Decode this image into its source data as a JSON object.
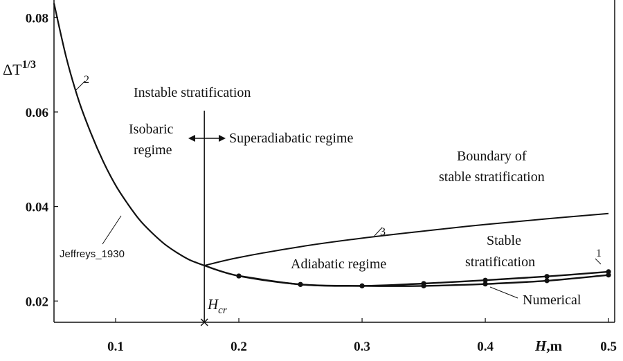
{
  "chart_data": {
    "type": "line",
    "ylabel": "ΔT^1/3",
    "ylabel_base": "ΔT",
    "ylabel_sup": "1/3",
    "xlabel": "H, m",
    "xlabel_italic": "H",
    "xlabel_unit": ",m",
    "xlim": [
      0.05,
      0.505
    ],
    "ylim": [
      0.0155,
      0.0837
    ],
    "x_ticks": [
      0.1,
      0.2,
      0.3,
      0.4,
      0.5
    ],
    "x_tick_labels": [
      "0.1",
      "0.2",
      "0.3",
      "0.4",
      "0.5"
    ],
    "y_ticks": [
      0.02,
      0.04,
      0.06,
      0.08
    ],
    "y_tick_labels": [
      "0.02",
      "0.04",
      "0.06",
      "0.08"
    ],
    "grid": false,
    "series": [
      {
        "label": "2",
        "x": [
          0.05,
          0.06,
          0.07,
          0.08,
          0.09,
          0.1,
          0.11,
          0.12,
          0.13,
          0.14,
          0.15,
          0.16,
          0.172
        ],
        "y": [
          0.083,
          0.0715,
          0.0625,
          0.0555,
          0.0495,
          0.0445,
          0.0405,
          0.037,
          0.0343,
          0.032,
          0.0302,
          0.0287,
          0.0275
        ]
      },
      {
        "label": "3",
        "x": [
          0.172,
          0.2,
          0.25,
          0.3,
          0.35,
          0.4,
          0.45,
          0.5
        ],
        "y": [
          0.0275,
          0.0292,
          0.0315,
          0.0333,
          0.0348,
          0.0362,
          0.0374,
          0.0385
        ]
      },
      {
        "label": "1",
        "x": [
          0.172,
          0.2,
          0.25,
          0.3,
          0.35,
          0.4,
          0.45,
          0.5
        ],
        "y": [
          0.0275,
          0.0253,
          0.0235,
          0.0232,
          0.0237,
          0.0244,
          0.0252,
          0.0262
        ]
      },
      {
        "name": "Numerical",
        "x": [
          0.2,
          0.25,
          0.3,
          0.35,
          0.4,
          0.45,
          0.5
        ],
        "y": [
          0.0253,
          0.0235,
          0.0232,
          0.0232,
          0.0236,
          0.0243,
          0.0255
        ]
      }
    ],
    "vertical_line": {
      "x": 0.172,
      "label": "Hcr",
      "label_italic": "H",
      "label_sub": "cr"
    },
    "annotations": {
      "instable": "Instable  stratification",
      "isobaric_1": "Isobaric",
      "isobaric_2": "regime",
      "superadiabatic": "Superadiabatic regime",
      "boundary_1": "Boundary of",
      "boundary_2": "stable stratification",
      "adiabatic": "Adiabatic regime",
      "stable_1": "Stable",
      "stable_2": "stratification",
      "jeffreys": "Jeffreys_1930",
      "numerical": "Numerical"
    }
  }
}
